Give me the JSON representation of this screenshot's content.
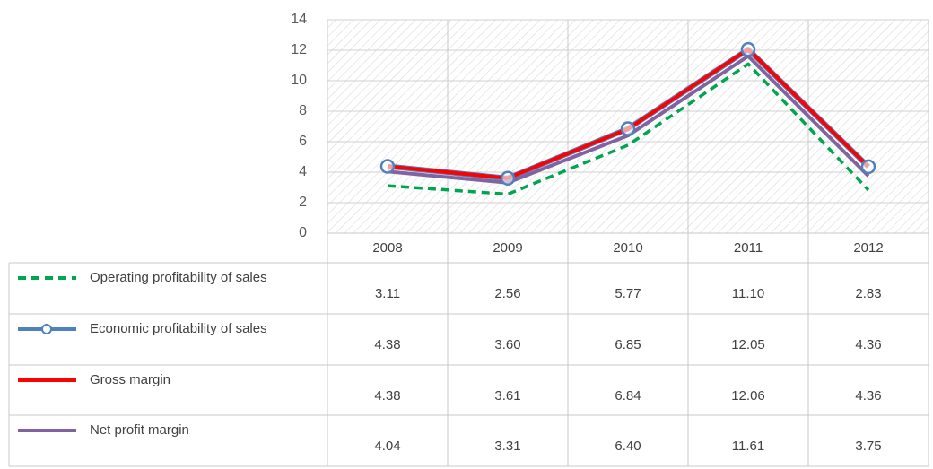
{
  "chart_data": {
    "type": "line",
    "categories": [
      "2008",
      "2009",
      "2010",
      "2011",
      "2012"
    ],
    "ylim": [
      0,
      14
    ],
    "yticks": [
      0,
      2,
      4,
      6,
      8,
      10,
      12,
      14
    ],
    "grid": true,
    "series": [
      {
        "name": "Operating profitability of sales",
        "color": "#00a550",
        "dash": true,
        "values": [
          3.11,
          2.56,
          5.77,
          11.1,
          2.83
        ],
        "value_labels": [
          "3.11",
          "2.56",
          "5.77",
          "11.10",
          "2.83"
        ]
      },
      {
        "name": "Economic profitability of sales",
        "color": "#4f81bd",
        "marker": "circle",
        "values": [
          4.38,
          3.6,
          6.85,
          12.05,
          4.36
        ],
        "value_labels": [
          "4.38",
          "3.60",
          "6.85",
          "12.05",
          "4.36"
        ]
      },
      {
        "name": "Gross margin",
        "color": "#ff0000",
        "values": [
          4.38,
          3.61,
          6.84,
          12.06,
          4.36
        ],
        "value_labels": [
          "4.38",
          "3.61",
          "6.84",
          "12.06",
          "4.36"
        ]
      },
      {
        "name": "Net profit margin",
        "color": "#8064a2",
        "values": [
          4.04,
          3.31,
          6.4,
          11.61,
          3.75
        ],
        "value_labels": [
          "4.04",
          "3.31",
          "6.40",
          "11.61",
          "3.75"
        ]
      }
    ]
  }
}
